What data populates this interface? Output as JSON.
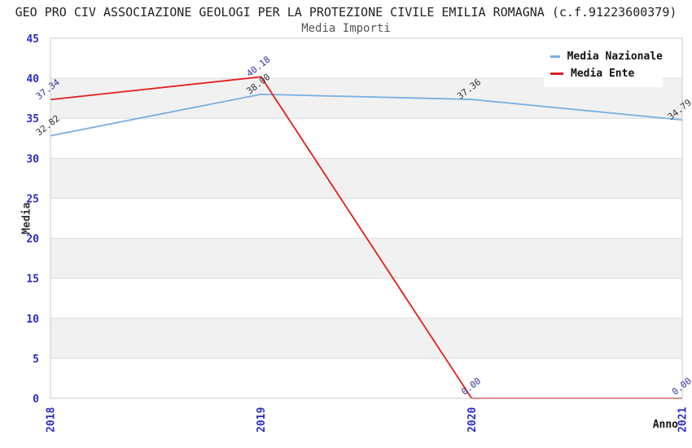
{
  "chart_data": {
    "type": "line",
    "title": "GEO PRO CIV ASSOCIAZIONE GEOLOGI PER LA PROTEZIONE CIVILE EMILIA ROMAGNA (c.f.91223600379)",
    "subtitle": "Media Importi",
    "xlabel": "Anno",
    "ylabel": "Media",
    "x": [
      "2018",
      "2019",
      "2020",
      "2021"
    ],
    "ylim": [
      0,
      45
    ],
    "yticks": [
      0,
      5,
      10,
      15,
      20,
      25,
      30,
      35,
      40,
      45
    ],
    "grid": "horizontal gridlines with alternating shaded bands",
    "legend_position": "top-right",
    "series": [
      {
        "name": "Media Nazionale",
        "color": "#79AFE1",
        "label_color": "#333333",
        "values": [
          32.82,
          38.0,
          37.36,
          34.79
        ],
        "labels": [
          "32.82",
          "38.00",
          "37.36",
          "34.79"
        ]
      },
      {
        "name": "Media Ente",
        "color": "#E51D1D",
        "label_color": "#333399",
        "values": [
          37.34,
          40.18,
          0.0,
          0.0
        ],
        "labels": [
          "37.34",
          "40.18",
          "0.00",
          "0.00"
        ]
      }
    ],
    "colors": {
      "tick_label": "#2B2BCC",
      "axis_title": "#333333",
      "grid_line": "#DCDCDC",
      "band_fill": "#F1F1F1",
      "plot_border": "#C9C9C9",
      "title": "#222222",
      "subtitle": "#555555",
      "legend_text": "#111111"
    }
  }
}
